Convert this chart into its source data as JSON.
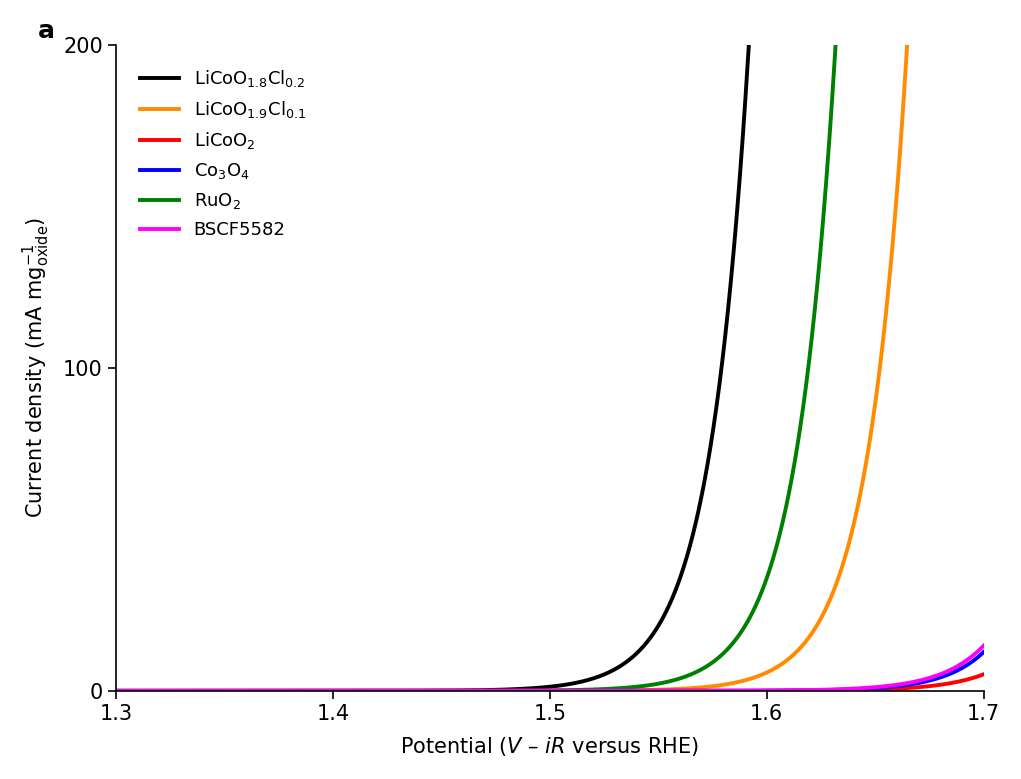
{
  "title_label": "a",
  "xlabel_italic": "V",
  "xlabel_italic2": "iR",
  "xlim": [
    1.3,
    1.7
  ],
  "ylim": [
    0,
    200
  ],
  "xticks": [
    1.3,
    1.4,
    1.5,
    1.6,
    1.7
  ],
  "yticks": [
    0,
    100,
    200
  ],
  "series": [
    {
      "label": "LiCoO$_{1.8}$Cl$_{0.2}$",
      "color": "#000000",
      "onset": 1.415,
      "a": 0.012,
      "b": 55
    },
    {
      "label": "LiCoO$_{1.9}$Cl$_{0.1}$",
      "color": "#FF8C00",
      "onset": 1.488,
      "a": 0.012,
      "b": 55
    },
    {
      "label": "LiCoO$_2$",
      "color": "#FF0000",
      "onset": 1.565,
      "a": 0.006,
      "b": 50
    },
    {
      "label": "Co$_3$O$_4$",
      "color": "#0000FF",
      "onset": 1.562,
      "a": 0.008,
      "b": 53
    },
    {
      "label": "RuO$_2$",
      "color": "#008000",
      "onset": 1.455,
      "a": 0.012,
      "b": 55
    },
    {
      "label": "BSCF5582",
      "color": "#FF00FF",
      "onset": 1.548,
      "a": 0.007,
      "b": 50
    }
  ],
  "background_color": "#ffffff",
  "linewidth": 2.8
}
